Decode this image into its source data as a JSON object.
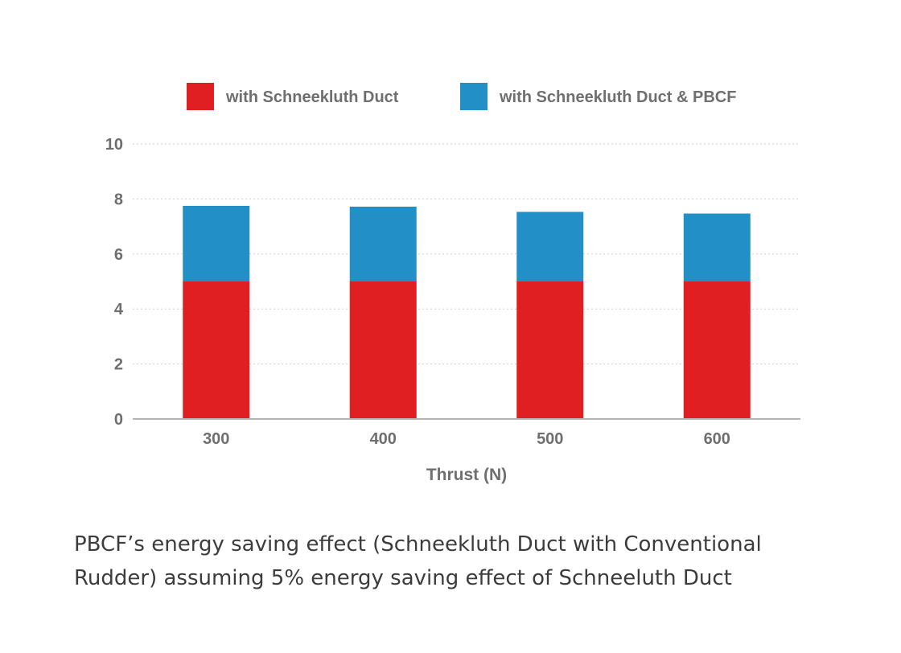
{
  "chart_data": {
    "type": "bar",
    "stacked": true,
    "categories": [
      "300",
      "400",
      "500",
      "600"
    ],
    "series": [
      {
        "name": "with Schneekluth Duct",
        "values": [
          5.0,
          5.0,
          5.0,
          5.0
        ],
        "color": "#df1f22"
      },
      {
        "name": "with Schneekluth Duct & PBCF",
        "values": [
          2.75,
          2.72,
          2.53,
          2.47
        ],
        "color": "#238fc7"
      }
    ],
    "xlabel": "Thrust (N)",
    "ylabel": "",
    "ylim": [
      0,
      10
    ],
    "yticks": [
      "0",
      "2",
      "4",
      "6",
      "8",
      "10"
    ],
    "grid": true,
    "legend_position": "top"
  },
  "caption": {
    "line1": "PBCF’s energy saving effect (Schneekluth Duct with Conventional",
    "line2": "Rudder) assuming 5% energy saving effect of Schneeluth Duct"
  }
}
